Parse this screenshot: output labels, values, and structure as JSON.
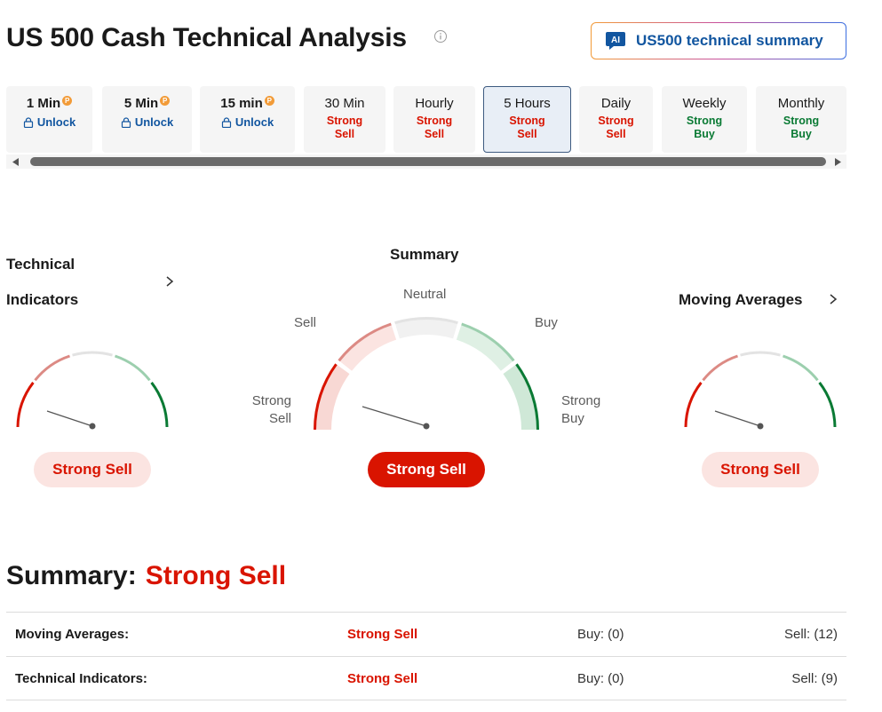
{
  "header": {
    "title": "US 500 Cash Technical Analysis",
    "ai_button_label": "US500 technical summary",
    "ai_icon_text": "AI"
  },
  "timeframes": [
    {
      "name": "1 Min",
      "locked": true,
      "lock_label": "Unlock"
    },
    {
      "name": "5 Min",
      "locked": true,
      "lock_label": "Unlock"
    },
    {
      "name": "15 min",
      "locked": true,
      "lock_label": "Unlock"
    },
    {
      "name": "30 Min",
      "signal_line1": "Strong",
      "signal_line2": "Sell",
      "signal": "sell"
    },
    {
      "name": "Hourly",
      "signal_line1": "Strong",
      "signal_line2": "Sell",
      "signal": "sell"
    },
    {
      "name": "5 Hours",
      "signal_line1": "Strong",
      "signal_line2": "Sell",
      "signal": "sell",
      "active": true
    },
    {
      "name": "Daily",
      "signal_line1": "Strong",
      "signal_line2": "Sell",
      "signal": "sell"
    },
    {
      "name": "Weekly",
      "signal_line1": "Strong",
      "signal_line2": "Buy",
      "signal": "buy"
    },
    {
      "name": "Monthly",
      "signal_line1": "Strong",
      "signal_line2": "Buy",
      "signal": "buy"
    }
  ],
  "gauges": {
    "technical_indicators": {
      "title_line1": "Technical",
      "title_line2": "Indicators",
      "result": "Strong Sell"
    },
    "summary": {
      "title": "Summary",
      "labels": {
        "neutral": "Neutral",
        "sell": "Sell",
        "buy": "Buy",
        "strong_sell_1": "Strong",
        "strong_sell_2": "Sell",
        "strong_buy_1": "Strong",
        "strong_buy_2": "Buy"
      },
      "result": "Strong Sell"
    },
    "moving_averages": {
      "title": "Moving Averages",
      "result": "Strong Sell"
    }
  },
  "summary": {
    "heading": "Summary:",
    "signal": "Strong Sell",
    "rows": [
      {
        "name": "Moving Averages:",
        "signal": "Strong Sell",
        "buy": "Buy: (0)",
        "sell": "Sell: (12)"
      },
      {
        "name": "Technical Indicators:",
        "signal": "Strong Sell",
        "buy": "Buy: (0)",
        "sell": "Sell: (9)"
      }
    ]
  },
  "colors": {
    "strong_sell": "#d91400",
    "sell_arc": "#dc8a84",
    "neutral_arc": "#e3e3e3",
    "buy_arc": "#9ccfae",
    "strong_buy": "#0a7a34",
    "link_blue": "#1256a0"
  },
  "icons": {
    "info": "info-icon",
    "ai": "ai-chat-icon",
    "lock": "lock-icon",
    "premium": "premium-p-icon",
    "chevron": "chevron-right-icon",
    "scroll_left": "caret-left-icon",
    "scroll_right": "caret-right-icon"
  }
}
